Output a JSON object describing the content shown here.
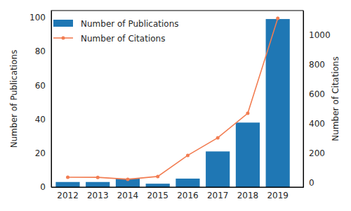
{
  "chart_data": {
    "type": "bar",
    "categories": [
      "2012",
      "2013",
      "2014",
      "2015",
      "2016",
      "2017",
      "2018",
      "2019"
    ],
    "series": [
      {
        "name": "Number of Publications",
        "type": "bar",
        "color": "#1f77b4",
        "values": [
          3,
          3,
          5,
          2,
          5,
          21,
          38,
          99
        ]
      },
      {
        "name": "Number of Citations",
        "type": "line",
        "axis": "y2",
        "color": "#f27d52",
        "marker": "circle",
        "values": [
          38,
          37,
          24,
          43,
          186,
          305,
          471,
          1114
        ]
      }
    ],
    "y_label": "Number of Publications",
    "y2_label": "Number of Citations",
    "ylim": [
      0,
      104
    ],
    "yticks": [
      0,
      20,
      40,
      60,
      80,
      100
    ],
    "y2lim": [
      -29,
      1167
    ],
    "y2ticks": [
      0,
      200,
      400,
      600,
      800,
      1000
    ],
    "legend": "upper left",
    "grid": false
  }
}
